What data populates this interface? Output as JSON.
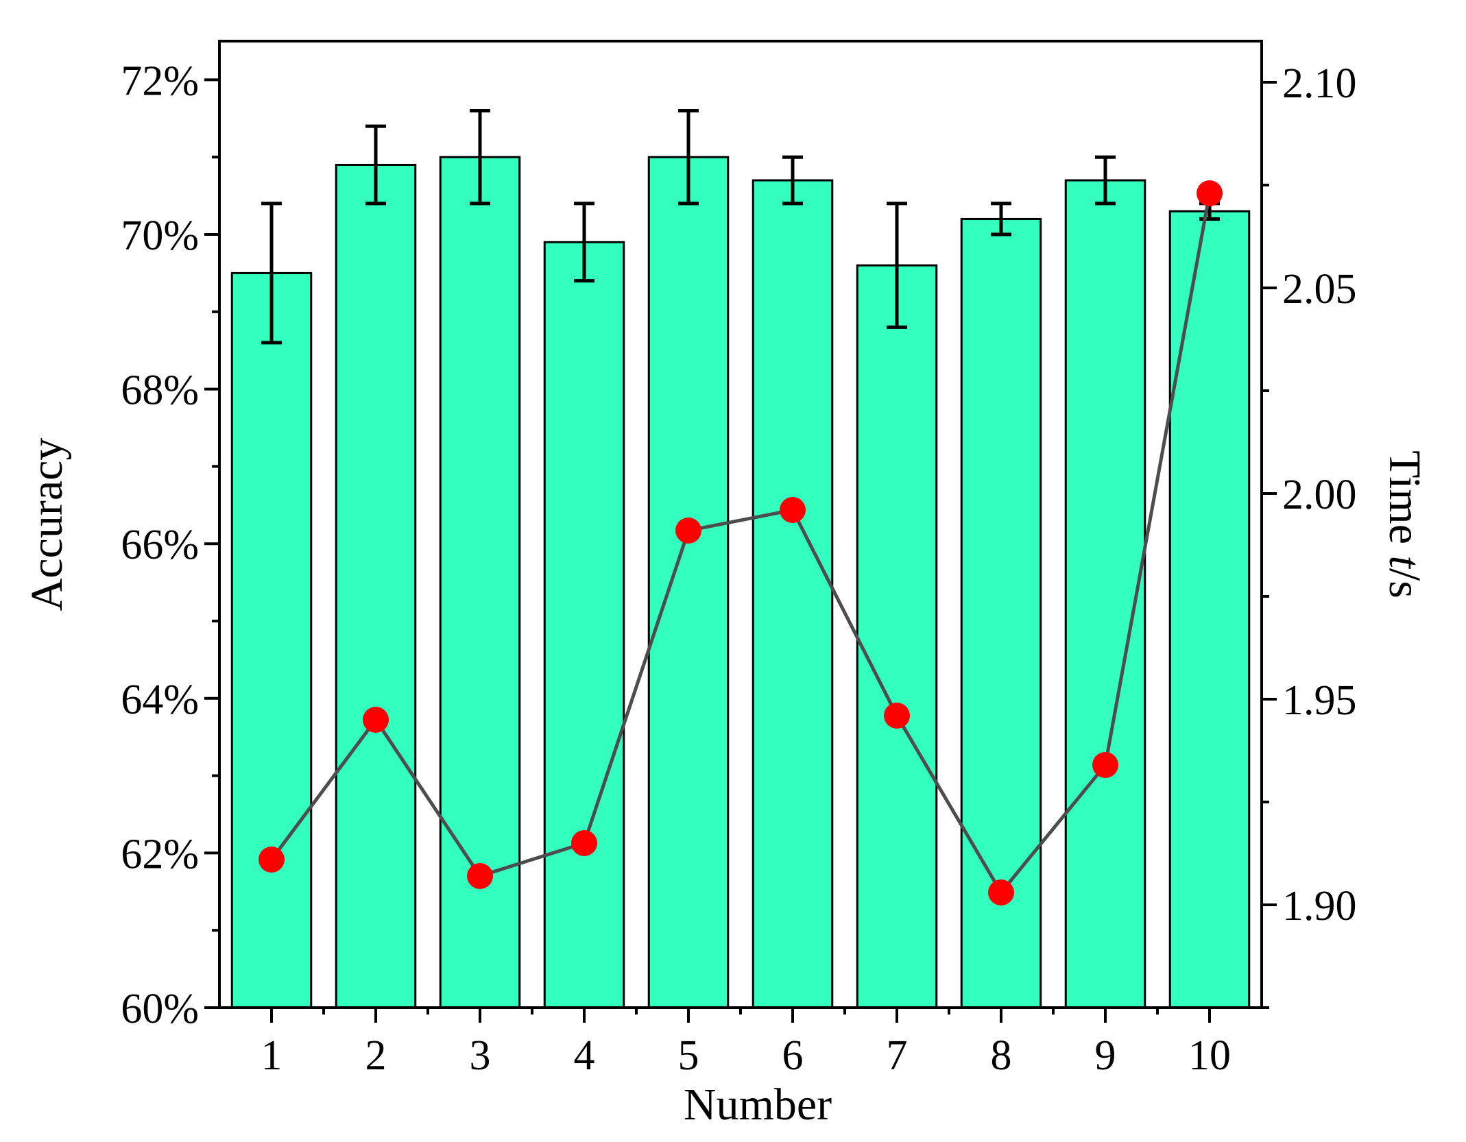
{
  "chart_data": {
    "type": "bar",
    "title": "",
    "xlabel": "Number",
    "ylabel": "Accuracy",
    "y2label_prefix": "Time ",
    "y2label_var": "t",
    "y2label_suffix": "/s",
    "categories": [
      "1",
      "2",
      "3",
      "4",
      "5",
      "6",
      "7",
      "8",
      "9",
      "10"
    ],
    "series": [
      {
        "kind": "bar",
        "axis": "left",
        "values": [
          69.5,
          70.9,
          71.0,
          69.9,
          71.0,
          70.7,
          69.6,
          70.2,
          70.7,
          70.3
        ],
        "error": [
          0.9,
          0.5,
          0.6,
          0.5,
          0.6,
          0.3,
          0.8,
          0.2,
          0.3,
          0.1
        ],
        "color": "#33ffbe"
      },
      {
        "kind": "line",
        "axis": "right",
        "values": [
          1.911,
          1.945,
          1.907,
          1.915,
          1.991,
          1.996,
          1.946,
          1.903,
          1.934,
          2.073
        ],
        "marker_color": "#ff0000",
        "line_color": "#4d4d4d"
      }
    ],
    "ylim": [
      60,
      72.5
    ],
    "y2lim": [
      1.875,
      2.11
    ],
    "y_ticks": [
      "60%",
      "62%",
      "64%",
      "66%",
      "68%",
      "70%",
      "72%"
    ],
    "y_tick_values": [
      60,
      62,
      64,
      66,
      68,
      70,
      72
    ],
    "y2_ticks": [
      "1.90",
      "1.95",
      "2.00",
      "2.05",
      "2.10"
    ],
    "y2_tick_values": [
      1.9,
      1.95,
      2.0,
      2.05,
      2.1
    ],
    "grid": false,
    "legend": "none"
  }
}
